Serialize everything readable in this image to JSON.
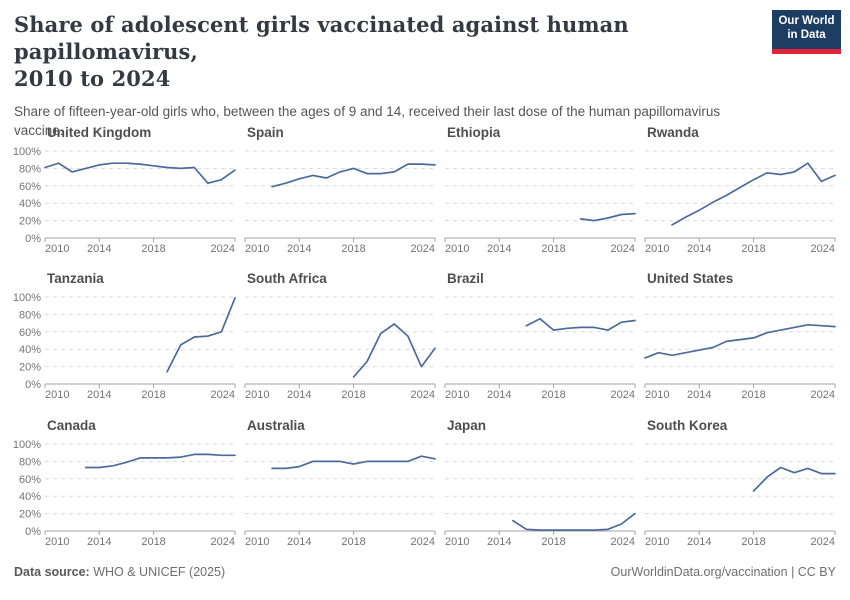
{
  "header": {
    "title_line1": "Share of adolescent girls vaccinated against human papillomavirus,",
    "title_line2": "2010 to 2024",
    "subtitle": "Share of fifteen-year-old girls who, between the ages of 9 and 14, received their last dose of the human papillomavirus vaccine.",
    "logo": {
      "line1": "Our World",
      "line2": "in Data",
      "bg_color": "#1d3d63",
      "accent_color": "#e0243c"
    }
  },
  "footer": {
    "datasource_label": "Data source:",
    "datasource_value": " WHO & UNICEF (2025)",
    "attribution": "OurWorldinData.org/vaccination | CC BY"
  },
  "chart_data": {
    "type": "line",
    "title": "Share of adolescent girls vaccinated against human papillomavirus, 2010 to 2024",
    "layout": "4x3 small multiples, shared axes",
    "x_range": [
      2010,
      2024
    ],
    "x_ticks": [
      2010,
      2014,
      2018,
      2024
    ],
    "ylim": [
      0,
      100
    ],
    "y_ticks": [
      "0%",
      "20%",
      "40%",
      "60%",
      "80%",
      "100%"
    ],
    "grid": "dashed horizontal gridlines",
    "line_color": "#4c6a9c",
    "grid_color": "#d9d9d9",
    "axis_color": "#a3a3a3",
    "facets": [
      {
        "name": "United Kingdom",
        "start_year": 2010,
        "values": [
          81,
          86,
          76,
          80,
          84,
          86,
          86,
          85,
          83,
          81,
          80,
          81,
          63,
          67,
          78
        ]
      },
      {
        "name": "Spain",
        "start_year": 2012,
        "values": [
          59,
          63,
          68,
          72,
          69,
          76,
          80,
          74,
          74,
          76,
          85,
          85,
          84
        ]
      },
      {
        "name": "Ethiopia",
        "start_year": 2020,
        "values": [
          22,
          20,
          23,
          27,
          28
        ]
      },
      {
        "name": "Rwanda",
        "start_year": 2012,
        "values": [
          15,
          24,
          32,
          41,
          49,
          58,
          67,
          75,
          73,
          76,
          86,
          65,
          72
        ]
      },
      {
        "name": "Tanzania",
        "start_year": 2019,
        "values": [
          14,
          45,
          54,
          55,
          60,
          99
        ]
      },
      {
        "name": "South Africa",
        "start_year": 2018,
        "values": [
          8,
          26,
          58,
          69,
          55,
          20,
          41
        ]
      },
      {
        "name": "Brazil",
        "start_year": 2016,
        "values": [
          67,
          75,
          62,
          64,
          65,
          65,
          62,
          71,
          73
        ]
      },
      {
        "name": "United States",
        "start_year": 2010,
        "values": [
          30,
          36,
          33,
          36,
          39,
          42,
          49,
          51,
          53,
          59,
          62,
          65,
          68,
          67,
          66
        ]
      },
      {
        "name": "Canada",
        "start_year": 2013,
        "values": [
          73,
          73,
          75,
          79,
          84,
          84,
          84,
          85,
          88,
          88,
          87,
          87
        ]
      },
      {
        "name": "Australia",
        "start_year": 2012,
        "values": [
          72,
          72,
          74,
          80,
          80,
          80,
          77,
          80,
          80,
          80,
          80,
          86,
          83
        ]
      },
      {
        "name": "Japan",
        "start_year": 2015,
        "values": [
          12,
          2,
          1,
          1,
          1,
          1,
          1,
          2,
          8,
          20
        ]
      },
      {
        "name": "South Korea",
        "start_year": 2018,
        "values": [
          46,
          62,
          73,
          67,
          72,
          66,
          66
        ]
      }
    ]
  }
}
